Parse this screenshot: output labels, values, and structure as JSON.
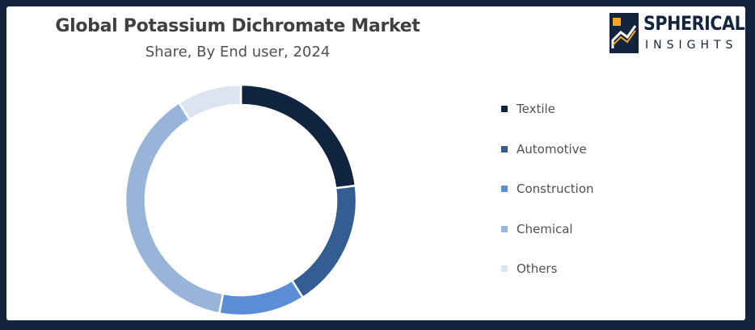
{
  "header": {
    "title": "Global Potassium Dichromate Market",
    "subtitle": "Share, By End user, 2024"
  },
  "logo": {
    "word": "SPHERICAL",
    "sub": "INSIGHTS",
    "color": "#13243f",
    "accent": "#f5a623"
  },
  "chart_data": {
    "type": "pie",
    "donut": true,
    "categories": [
      "Textile",
      "Automotive",
      "Construction",
      "Chemical",
      "Others"
    ],
    "values": [
      23,
      18,
      12,
      38,
      9
    ],
    "unit": "%",
    "colors": [
      "#10233f",
      "#335d93",
      "#5b8ed6",
      "#98b4d9",
      "#dbe5f2"
    ],
    "legend_position": "right",
    "start_angle_deg": 0,
    "direction": "clockwise"
  }
}
